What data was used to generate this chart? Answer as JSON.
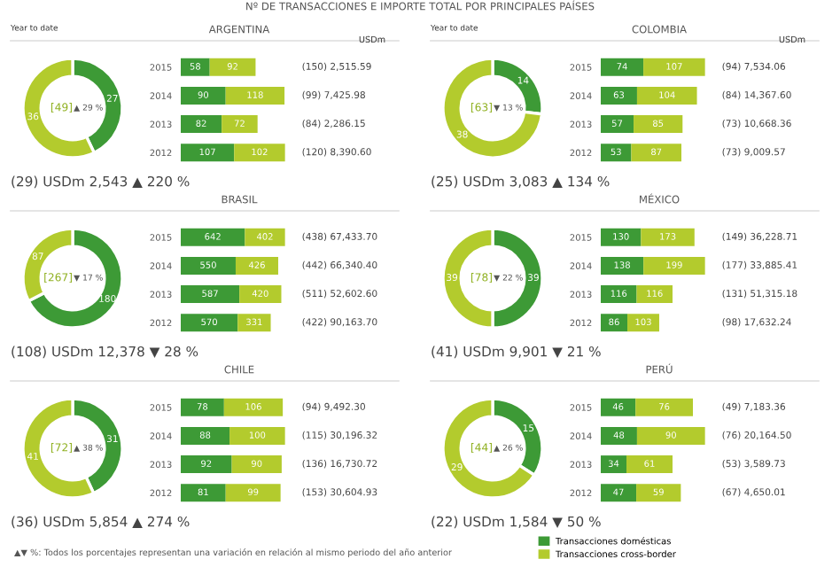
{
  "chart_data": [
    {
      "type": "donut",
      "categories": [
        null,
        null
      ],
      "values": [
        27,
        36
      ],
      "colors": [
        "#3d9a36",
        "#b3cb2d"
      ],
      "data_labels": true,
      "subtitle": "Year to date",
      "annotations": [
        "[49]",
        "▲ 29 %",
        "(29) USDm 2,543 ▲ 220 %"
      ]
    },
    {
      "type": "bar",
      "orientation": "horizontal",
      "stacked": true,
      "title": "ARGENTINA",
      "categories": [
        "2015",
        "2014",
        "2013",
        "2012"
      ],
      "tick_labels": "y",
      "data_labels": true,
      "legend": "bottom",
      "series": [
        {
          "name": "Transacciones domésticas",
          "color": "#3d9a36",
          "values": [
            58,
            90,
            82,
            107
          ]
        },
        {
          "name": "Transacciones cross-border",
          "color": "#b3cb2d",
          "values": [
            92,
            118,
            72,
            102
          ]
        }
      ],
      "annotations": [
        "USDm",
        "(150) 2,515.59",
        "(99) 7,425.98",
        "(84) 2,286.15",
        "(120) 8,390.60"
      ]
    },
    {
      "type": "donut",
      "categories": [
        null,
        null
      ],
      "values": [
        14,
        38
      ],
      "colors": [
        "#3d9a36",
        "#b3cb2d"
      ],
      "data_labels": true,
      "subtitle": "Year to date",
      "annotations": [
        "[63]",
        "▼ 13 %",
        "(25) USDm 3,083 ▲ 134 %"
      ]
    },
    {
      "type": "bar",
      "orientation": "horizontal",
      "stacked": true,
      "title": "COLOMBIA",
      "categories": [
        "2015",
        "2014",
        "2013",
        "2012"
      ],
      "tick_labels": "y",
      "data_labels": true,
      "series": [
        {
          "color": "#3d9a36",
          "values": [
            74,
            63,
            57,
            53
          ]
        },
        {
          "color": "#b3cb2d",
          "values": [
            107,
            104,
            85,
            87
          ]
        }
      ],
      "annotations": [
        "USDm",
        "(94) 7,534.06",
        "(84) 14,367.60",
        "(73) 10,668.36",
        "(73) 9,009.57"
      ]
    },
    {
      "type": "donut",
      "categories": [
        null,
        null
      ],
      "values": [
        180,
        87
      ],
      "colors": [
        "#3d9a36",
        "#b3cb2d"
      ],
      "data_labels": true,
      "annotations": [
        "[267]",
        "▼ 17 %",
        "(108) USDm 12,378 ▼ 28 %"
      ]
    },
    {
      "type": "bar",
      "orientation": "horizontal",
      "stacked": true,
      "title": "BRASIL",
      "categories": [
        "2015",
        "2014",
        "2013",
        "2012"
      ],
      "tick_labels": "y",
      "data_labels": true,
      "series": [
        {
          "color": "#3d9a36",
          "values": [
            642,
            550,
            587,
            570
          ]
        },
        {
          "color": "#b3cb2d",
          "values": [
            402,
            426,
            420,
            331
          ]
        }
      ],
      "annotations": [
        "(438) 67,433.70",
        "(442) 66,340.40",
        "(511) 52,602.60",
        "(422) 90,163.70"
      ]
    },
    {
      "type": "donut",
      "categories": [
        null,
        null
      ],
      "values": [
        39,
        39
      ],
      "colors": [
        "#3d9a36",
        "#b3cb2d"
      ],
      "data_labels": true,
      "annotations": [
        "[78]",
        "▼ 22 %",
        "(41) USDm 9,901 ▼ 21 %"
      ]
    },
    {
      "type": "bar",
      "orientation": "horizontal",
      "stacked": true,
      "title": "MÉXICO",
      "categories": [
        "2015",
        "2014",
        "2013",
        "2012"
      ],
      "tick_labels": "y",
      "data_labels": true,
      "series": [
        {
          "color": "#3d9a36",
          "values": [
            130,
            138,
            116,
            86
          ]
        },
        {
          "color": "#b3cb2d",
          "values": [
            173,
            199,
            116,
            103
          ]
        }
      ],
      "annotations": [
        "(149) 36,228.71",
        "(177) 33,885.41",
        "(131) 51,315.18",
        "(98) 17,632.24"
      ]
    },
    {
      "type": "donut",
      "categories": [
        null,
        null
      ],
      "values": [
        31,
        41
      ],
      "colors": [
        "#3d9a36",
        "#b3cb2d"
      ],
      "data_labels": true,
      "annotations": [
        "[72]",
        "▲ 38 %",
        "(36) USDm 5,854 ▲ 274 %"
      ]
    },
    {
      "type": "bar",
      "orientation": "horizontal",
      "stacked": true,
      "title": "CHILE",
      "categories": [
        "2015",
        "2014",
        "2013",
        "2012"
      ],
      "tick_labels": "y",
      "data_labels": true,
      "series": [
        {
          "color": "#3d9a36",
          "values": [
            78,
            88,
            92,
            81
          ]
        },
        {
          "color": "#b3cb2d",
          "values": [
            106,
            100,
            90,
            99
          ]
        }
      ],
      "annotations": [
        "(94) 9,492.30",
        "(115) 30,196.32",
        "(136) 16,730.72",
        "(153) 30,604.93"
      ]
    },
    {
      "type": "donut",
      "categories": [
        null,
        null
      ],
      "values": [
        15,
        29
      ],
      "colors": [
        "#3d9a36",
        "#b3cb2d"
      ],
      "data_labels": true,
      "annotations": [
        "[44]",
        "▲ 26 %",
        "(22) USDm 1,584 ▼ 50 %"
      ]
    },
    {
      "type": "bar",
      "orientation": "horizontal",
      "stacked": true,
      "title": "PERÚ",
      "categories": [
        "2015",
        "2014",
        "2013",
        "2012"
      ],
      "tick_labels": "y",
      "data_labels": true,
      "series": [
        {
          "color": "#3d9a36",
          "values": [
            46,
            48,
            34,
            47
          ]
        },
        {
          "color": "#b3cb2d",
          "values": [
            76,
            90,
            61,
            59
          ]
        }
      ],
      "annotations": [
        "(49) 7,183.36",
        "(76) 20,164.50",
        "(53) 3,589.73",
        "(67) 4,650.01"
      ]
    },
    {
      "type": "other",
      "title": "Nº DE TRANSACCIONES E IMPORTE TOTAL POR PRINCIPALES PAÍSES",
      "annotations": [
        "▲▼ %: Todos los porcentajes representan una variación en relación al mismo periodo del año anterior"
      ]
    }
  ]
}
